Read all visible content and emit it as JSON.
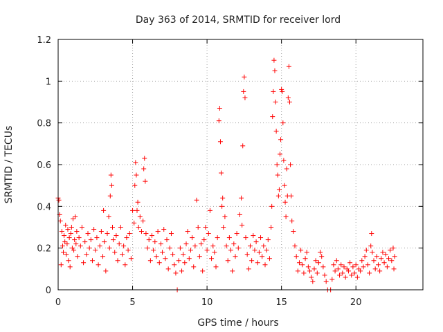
{
  "chart_data": {
    "type": "scatter",
    "title": "Day 363 of 2014, SRMTID for receiver lord",
    "xlabel": "GPS time / hours",
    "ylabel": "SRMTID / TECUs",
    "xlim": [
      0,
      24.5
    ],
    "ylim": [
      0,
      1.2
    ],
    "xticks": [
      0,
      5,
      10,
      15,
      20
    ],
    "yticks": [
      0,
      0.2,
      0.4,
      0.6,
      0.8,
      1,
      1.2
    ],
    "ytick_labels": [
      "0",
      "0.2",
      "0.4",
      "0.6",
      "0.8",
      "1",
      "1.2"
    ],
    "grid": true,
    "marker": "+",
    "color": "#ff0000",
    "series": [
      {
        "name": "SRMTID",
        "points": [
          [
            0.0,
            0.44
          ],
          [
            0.05,
            0.43
          ],
          [
            0.1,
            0.36
          ],
          [
            0.15,
            0.33
          ],
          [
            0.2,
            0.12
          ],
          [
            0.25,
            0.28
          ],
          [
            0.3,
            0.21
          ],
          [
            0.35,
            0.18
          ],
          [
            0.4,
            0.26
          ],
          [
            0.45,
            0.23
          ],
          [
            0.5,
            0.31
          ],
          [
            0.55,
            0.17
          ],
          [
            0.6,
            0.22
          ],
          [
            0.65,
            0.29
          ],
          [
            0.7,
            0.14
          ],
          [
            0.75,
            0.25
          ],
          [
            0.8,
            0.11
          ],
          [
            0.85,
            0.27
          ],
          [
            0.9,
            0.3
          ],
          [
            0.95,
            0.2
          ],
          [
            1.0,
            0.34
          ],
          [
            1.05,
            0.19
          ],
          [
            1.1,
            0.24
          ],
          [
            1.15,
            0.35
          ],
          [
            1.2,
            0.22
          ],
          [
            1.25,
            0.28
          ],
          [
            1.3,
            0.16
          ],
          [
            1.4,
            0.25
          ],
          [
            1.5,
            0.21
          ],
          [
            1.6,
            0.3
          ],
          [
            1.7,
            0.13
          ],
          [
            1.8,
            0.23
          ],
          [
            1.9,
            0.17
          ],
          [
            2.0,
            0.27
          ],
          [
            2.1,
            0.2
          ],
          [
            2.2,
            0.24
          ],
          [
            2.3,
            0.14
          ],
          [
            2.4,
            0.29
          ],
          [
            2.5,
            0.19
          ],
          [
            2.6,
            0.25
          ],
          [
            2.7,
            0.12
          ],
          [
            2.8,
            0.21
          ],
          [
            2.9,
            0.28
          ],
          [
            3.0,
            0.16
          ],
          [
            3.05,
            0.38
          ],
          [
            3.1,
            0.23
          ],
          [
            3.2,
            0.09
          ],
          [
            3.3,
            0.27
          ],
          [
            3.4,
            0.35
          ],
          [
            3.45,
            0.2
          ],
          [
            3.5,
            0.45
          ],
          [
            3.55,
            0.55
          ],
          [
            3.6,
            0.5
          ],
          [
            3.65,
            0.3
          ],
          [
            3.7,
            0.24
          ],
          [
            3.8,
            0.18
          ],
          [
            3.9,
            0.26
          ],
          [
            4.0,
            0.14
          ],
          [
            4.1,
            0.22
          ],
          [
            4.2,
            0.3
          ],
          [
            4.3,
            0.17
          ],
          [
            4.4,
            0.21
          ],
          [
            4.5,
            0.12
          ],
          [
            4.6,
            0.25
          ],
          [
            4.7,
            0.19
          ],
          [
            4.8,
            0.27
          ],
          [
            4.9,
            0.15
          ],
          [
            5.0,
            0.38
          ],
          [
            5.1,
            0.32
          ],
          [
            5.15,
            0.5
          ],
          [
            5.2,
            0.61
          ],
          [
            5.25,
            0.55
          ],
          [
            5.3,
            0.38
          ],
          [
            5.35,
            0.42
          ],
          [
            5.4,
            0.3
          ],
          [
            5.5,
            0.35
          ],
          [
            5.6,
            0.28
          ],
          [
            5.7,
            0.33
          ],
          [
            5.75,
            0.58
          ],
          [
            5.8,
            0.63
          ],
          [
            5.85,
            0.52
          ],
          [
            5.9,
            0.27
          ],
          [
            6.0,
            0.2
          ],
          [
            6.1,
            0.24
          ],
          [
            6.2,
            0.14
          ],
          [
            6.3,
            0.26
          ],
          [
            6.4,
            0.19
          ],
          [
            6.5,
            0.23
          ],
          [
            6.6,
            0.16
          ],
          [
            6.7,
            0.28
          ],
          [
            6.8,
            0.13
          ],
          [
            6.9,
            0.22
          ],
          [
            7.0,
            0.18
          ],
          [
            7.1,
            0.29
          ],
          [
            7.2,
            0.15
          ],
          [
            7.3,
            0.24
          ],
          [
            7.4,
            0.1
          ],
          [
            7.5,
            0.2
          ],
          [
            7.6,
            0.27
          ],
          [
            7.7,
            0.17
          ],
          [
            7.8,
            0.12
          ],
          [
            7.9,
            0.08
          ],
          [
            8.0,
            0.0
          ],
          [
            8.1,
            0.14
          ],
          [
            8.2,
            0.2
          ],
          [
            8.3,
            0.09
          ],
          [
            8.4,
            0.17
          ],
          [
            8.5,
            0.13
          ],
          [
            8.6,
            0.22
          ],
          [
            8.7,
            0.28
          ],
          [
            8.8,
            0.15
          ],
          [
            8.9,
            0.19
          ],
          [
            9.0,
            0.25
          ],
          [
            9.1,
            0.11
          ],
          [
            9.2,
            0.21
          ],
          [
            9.3,
            0.43
          ],
          [
            9.4,
            0.3
          ],
          [
            9.5,
            0.16
          ],
          [
            9.6,
            0.22
          ],
          [
            9.7,
            0.09
          ],
          [
            9.8,
            0.24
          ],
          [
            9.9,
            0.3
          ],
          [
            10.0,
            0.19
          ],
          [
            10.1,
            0.27
          ],
          [
            10.2,
            0.38
          ],
          [
            10.3,
            0.15
          ],
          [
            10.4,
            0.21
          ],
          [
            10.5,
            0.18
          ],
          [
            10.6,
            0.11
          ],
          [
            10.7,
            0.25
          ],
          [
            10.8,
            0.81
          ],
          [
            10.85,
            0.87
          ],
          [
            10.9,
            0.71
          ],
          [
            10.95,
            0.56
          ],
          [
            11.0,
            0.4
          ],
          [
            11.05,
            0.44
          ],
          [
            11.1,
            0.3
          ],
          [
            11.2,
            0.35
          ],
          [
            11.3,
            0.21
          ],
          [
            11.4,
            0.14
          ],
          [
            11.5,
            0.25
          ],
          [
            11.6,
            0.19
          ],
          [
            11.7,
            0.09
          ],
          [
            11.8,
            0.22
          ],
          [
            11.9,
            0.16
          ],
          [
            12.0,
            0.27
          ],
          [
            12.1,
            0.2
          ],
          [
            12.2,
            0.36
          ],
          [
            12.3,
            0.44
          ],
          [
            12.35,
            0.31
          ],
          [
            12.4,
            0.69
          ],
          [
            12.45,
            0.95
          ],
          [
            12.5,
            1.02
          ],
          [
            12.55,
            0.92
          ],
          [
            12.6,
            0.25
          ],
          [
            12.7,
            0.17
          ],
          [
            12.8,
            0.1
          ],
          [
            12.9,
            0.21
          ],
          [
            13.0,
            0.14
          ],
          [
            13.1,
            0.26
          ],
          [
            13.2,
            0.19
          ],
          [
            13.3,
            0.23
          ],
          [
            13.4,
            0.13
          ],
          [
            13.5,
            0.18
          ],
          [
            13.6,
            0.25
          ],
          [
            13.7,
            0.16
          ],
          [
            13.8,
            0.21
          ],
          [
            13.9,
            0.12
          ],
          [
            14.0,
            0.19
          ],
          [
            14.1,
            0.24
          ],
          [
            14.2,
            0.15
          ],
          [
            14.3,
            0.3
          ],
          [
            14.35,
            0.4
          ],
          [
            14.4,
            0.83
          ],
          [
            14.45,
            0.95
          ],
          [
            14.5,
            1.1
          ],
          [
            14.55,
            1.05
          ],
          [
            14.6,
            0.9
          ],
          [
            14.65,
            0.76
          ],
          [
            14.7,
            0.6
          ],
          [
            14.75,
            0.55
          ],
          [
            14.8,
            0.45
          ],
          [
            14.85,
            0.48
          ],
          [
            14.9,
            0.65
          ],
          [
            14.95,
            0.72
          ],
          [
            15.0,
            0.96
          ],
          [
            15.05,
            0.95
          ],
          [
            15.1,
            0.8
          ],
          [
            15.15,
            0.62
          ],
          [
            15.2,
            0.5
          ],
          [
            15.25,
            0.42
          ],
          [
            15.3,
            0.35
          ],
          [
            15.35,
            0.58
          ],
          [
            15.4,
            0.45
          ],
          [
            15.45,
            0.92
          ],
          [
            15.5,
            1.07
          ],
          [
            15.55,
            0.9
          ],
          [
            15.6,
            0.6
          ],
          [
            15.65,
            0.45
          ],
          [
            15.7,
            0.33
          ],
          [
            15.8,
            0.28
          ],
          [
            15.9,
            0.21
          ],
          [
            16.0,
            0.16
          ],
          [
            16.1,
            0.09
          ],
          [
            16.2,
            0.13
          ],
          [
            16.3,
            0.19
          ],
          [
            16.4,
            0.12
          ],
          [
            16.5,
            0.08
          ],
          [
            16.6,
            0.15
          ],
          [
            16.7,
            0.18
          ],
          [
            16.8,
            0.11
          ],
          [
            16.9,
            0.09
          ],
          [
            17.0,
            0.06
          ],
          [
            17.1,
            0.04
          ],
          [
            17.2,
            0.1
          ],
          [
            17.3,
            0.14
          ],
          [
            17.4,
            0.08
          ],
          [
            17.5,
            0.13
          ],
          [
            17.6,
            0.18
          ],
          [
            17.7,
            0.16
          ],
          [
            17.8,
            0.11
          ],
          [
            17.9,
            0.07
          ],
          [
            18.0,
            0.04
          ],
          [
            18.1,
            0.0
          ],
          [
            18.3,
            0.0
          ],
          [
            18.4,
            0.05
          ],
          [
            18.5,
            0.12
          ],
          [
            18.6,
            0.09
          ],
          [
            18.7,
            0.14
          ],
          [
            18.8,
            0.1
          ],
          [
            18.9,
            0.07
          ],
          [
            19.0,
            0.12
          ],
          [
            19.1,
            0.08
          ],
          [
            19.2,
            0.11
          ],
          [
            19.3,
            0.06
          ],
          [
            19.4,
            0.1
          ],
          [
            19.5,
            0.09
          ],
          [
            19.6,
            0.13
          ],
          [
            19.7,
            0.07
          ],
          [
            19.8,
            0.11
          ],
          [
            19.9,
            0.08
          ],
          [
            20.0,
            0.12
          ],
          [
            20.1,
            0.06
          ],
          [
            20.2,
            0.1
          ],
          [
            20.3,
            0.09
          ],
          [
            20.4,
            0.14
          ],
          [
            20.5,
            0.11
          ],
          [
            20.6,
            0.16
          ],
          [
            20.7,
            0.19
          ],
          [
            20.8,
            0.12
          ],
          [
            20.9,
            0.08
          ],
          [
            21.0,
            0.21
          ],
          [
            21.05,
            0.27
          ],
          [
            21.1,
            0.18
          ],
          [
            21.2,
            0.14
          ],
          [
            21.3,
            0.1
          ],
          [
            21.4,
            0.16
          ],
          [
            21.5,
            0.12
          ],
          [
            21.6,
            0.09
          ],
          [
            21.7,
            0.15
          ],
          [
            21.8,
            0.18
          ],
          [
            21.9,
            0.13
          ],
          [
            22.0,
            0.17
          ],
          [
            22.1,
            0.11
          ],
          [
            22.2,
            0.15
          ],
          [
            22.3,
            0.19
          ],
          [
            22.4,
            0.14
          ],
          [
            22.5,
            0.2
          ],
          [
            22.55,
            0.1
          ],
          [
            22.6,
            0.16
          ]
        ]
      }
    ]
  }
}
